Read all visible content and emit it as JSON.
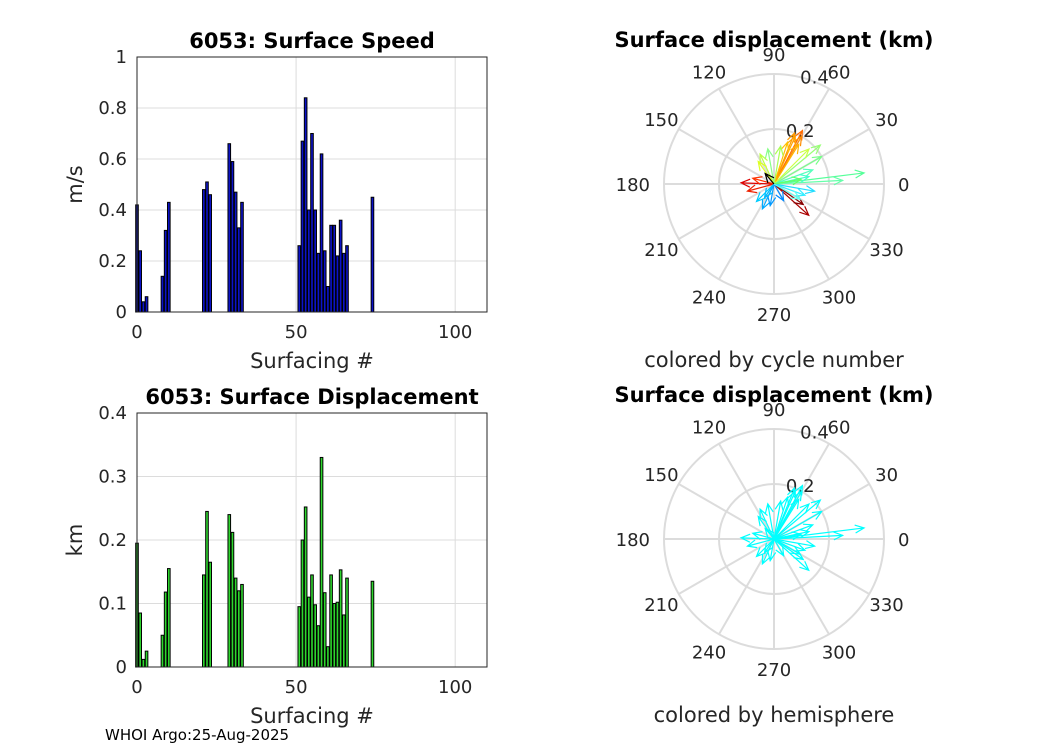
{
  "footer": "WHOI Argo:25-Aug-2025",
  "chart_data": [
    {
      "id": "speed",
      "type": "bar",
      "title": "6053: Surface Speed",
      "xlabel": "Surfacing #",
      "ylabel": "m/s",
      "xlim": [
        0,
        110
      ],
      "ylim": [
        0,
        1
      ],
      "xticks": [
        "0",
        "50",
        "100"
      ],
      "xtick_values": [
        0,
        50,
        100
      ],
      "yticks": [
        "0",
        "0.2",
        "0.4",
        "0.6",
        "0.8",
        "1"
      ],
      "ytick_values": [
        0,
        0.2,
        0.4,
        0.6,
        0.8,
        1
      ],
      "bar_color": "#0c13c8",
      "x": [
        0,
        1,
        2,
        3,
        8,
        9,
        10,
        21,
        22,
        23,
        29,
        30,
        31,
        32,
        33,
        51,
        52,
        53,
        54,
        55,
        56,
        57,
        58,
        59,
        60,
        61,
        62,
        63,
        64,
        65,
        66,
        74
      ],
      "values": [
        0.42,
        0.24,
        0.04,
        0.06,
        0.14,
        0.32,
        0.43,
        0.48,
        0.51,
        0.46,
        0.66,
        0.59,
        0.47,
        0.33,
        0.43,
        0.26,
        0.67,
        0.84,
        0.4,
        0.7,
        0.4,
        0.23,
        0.62,
        0.24,
        0.1,
        0.34,
        0.34,
        0.22,
        0.36,
        0.23,
        0.26,
        0.45
      ]
    },
    {
      "id": "disp",
      "type": "bar",
      "title": "6053: Surface Displacement",
      "xlabel": "Surfacing #",
      "ylabel": "km",
      "xlim": [
        0,
        110
      ],
      "ylim": [
        0,
        0.4
      ],
      "xticks": [
        "0",
        "50",
        "100"
      ],
      "xtick_values": [
        0,
        50,
        100
      ],
      "yticks": [
        "0",
        "0.1",
        "0.2",
        "0.3",
        "0.4"
      ],
      "ytick_values": [
        0,
        0.1,
        0.2,
        0.3,
        0.4
      ],
      "bar_color": "#2ed62e",
      "x": [
        0,
        1,
        2,
        3,
        8,
        9,
        10,
        21,
        22,
        23,
        29,
        30,
        31,
        32,
        33,
        51,
        52,
        53,
        54,
        55,
        56,
        57,
        58,
        59,
        60,
        61,
        62,
        63,
        64,
        65,
        66,
        74
      ],
      "values": [
        0.195,
        0.085,
        0.012,
        0.025,
        0.05,
        0.118,
        0.155,
        0.145,
        0.245,
        0.165,
        0.24,
        0.212,
        0.14,
        0.12,
        0.13,
        0.095,
        0.2,
        0.252,
        0.11,
        0.145,
        0.098,
        0.065,
        0.33,
        0.117,
        0.032,
        0.145,
        0.1,
        0.102,
        0.153,
        0.082,
        0.14,
        0.135
      ]
    },
    {
      "id": "polar1",
      "type": "polar-quiver",
      "title": "Surface displacement (km)",
      "caption": "colored by cycle number",
      "rlim": [
        0,
        0.4
      ],
      "rticks": [
        "0.2",
        "0.4"
      ],
      "rtick_values": [
        0.2,
        0.4
      ],
      "angle_ticks": [
        "0",
        "30",
        "60",
        "90",
        "120",
        "150",
        "180",
        "210",
        "240",
        "270",
        "300",
        "330"
      ],
      "vectors": [
        {
          "r": 0.22,
          "theta": 62,
          "color": "#ff6a00"
        },
        {
          "r": 0.2,
          "theta": 60,
          "color": "#ff8c00"
        },
        {
          "r": 0.19,
          "theta": 66,
          "color": "#ffa500"
        },
        {
          "r": 0.17,
          "theta": 58,
          "color": "#ffb300"
        },
        {
          "r": 0.2,
          "theta": 68,
          "color": "#ff9a00"
        },
        {
          "r": 0.16,
          "theta": 72,
          "color": "#ffc000"
        },
        {
          "r": 0.14,
          "theta": 80,
          "color": "#aaff55"
        },
        {
          "r": 0.13,
          "theta": 100,
          "color": "#88ff88"
        },
        {
          "r": 0.12,
          "theta": 115,
          "color": "#bbff44"
        },
        {
          "r": 0.1,
          "theta": 125,
          "color": "#ddff22"
        },
        {
          "r": 0.33,
          "theta": 7,
          "color": "#55ff99"
        },
        {
          "r": 0.25,
          "theta": 3,
          "color": "#66ffaa"
        },
        {
          "r": 0.2,
          "theta": 30,
          "color": "#77ff88"
        },
        {
          "r": 0.22,
          "theta": 40,
          "color": "#99ff77"
        },
        {
          "r": 0.18,
          "theta": 45,
          "color": "#ccff44"
        },
        {
          "r": 0.15,
          "theta": 20,
          "color": "#55ffbb"
        },
        {
          "r": 0.13,
          "theta": 12,
          "color": "#44ffcc"
        },
        {
          "r": 0.12,
          "theta": 340,
          "color": "#33eeff"
        },
        {
          "r": 0.15,
          "theta": 350,
          "color": "#22ddff"
        },
        {
          "r": 0.1,
          "theta": 10,
          "color": "#66ff66"
        },
        {
          "r": 0.12,
          "theta": 178,
          "color": "#dd0000"
        },
        {
          "r": 0.1,
          "theta": 195,
          "color": "#ee2200"
        },
        {
          "r": 0.08,
          "theta": 165,
          "color": "#ff3300"
        },
        {
          "r": 0.17,
          "theta": 318,
          "color": "#aa0000"
        },
        {
          "r": 0.13,
          "theta": 325,
          "color": "#880000"
        },
        {
          "r": 0.1,
          "theta": 245,
          "color": "#00aaff"
        },
        {
          "r": 0.08,
          "theta": 260,
          "color": "#0099ff"
        },
        {
          "r": 0.09,
          "theta": 225,
          "color": "#00ccff"
        },
        {
          "r": 0.06,
          "theta": 235,
          "color": "#00bbff"
        },
        {
          "r": 0.07,
          "theta": 300,
          "color": "#0088ff"
        },
        {
          "r": 0.05,
          "theta": 130,
          "color": "#000000"
        },
        {
          "r": 0.11,
          "theta": 330,
          "color": "#66ffee"
        }
      ]
    },
    {
      "id": "polar2",
      "type": "polar-quiver",
      "title": "Surface displacement (km)",
      "caption": "colored by hemisphere",
      "rlim": [
        0,
        0.4
      ],
      "rticks": [
        "0.2",
        "0.4"
      ],
      "rtick_values": [
        0.2,
        0.4
      ],
      "angle_ticks": [
        "0",
        "30",
        "60",
        "90",
        "120",
        "150",
        "180",
        "210",
        "240",
        "270",
        "300",
        "330"
      ],
      "vectors": [
        {
          "r": 0.22,
          "theta": 62,
          "color": "#00ffff"
        },
        {
          "r": 0.2,
          "theta": 60,
          "color": "#00ffff"
        },
        {
          "r": 0.19,
          "theta": 66,
          "color": "#00ffff"
        },
        {
          "r": 0.17,
          "theta": 58,
          "color": "#00ffff"
        },
        {
          "r": 0.2,
          "theta": 68,
          "color": "#00ffff"
        },
        {
          "r": 0.16,
          "theta": 72,
          "color": "#00ffff"
        },
        {
          "r": 0.14,
          "theta": 80,
          "color": "#00ffff"
        },
        {
          "r": 0.13,
          "theta": 100,
          "color": "#00ffff"
        },
        {
          "r": 0.12,
          "theta": 115,
          "color": "#00ffff"
        },
        {
          "r": 0.1,
          "theta": 125,
          "color": "#00ffff"
        },
        {
          "r": 0.33,
          "theta": 7,
          "color": "#00ffff"
        },
        {
          "r": 0.25,
          "theta": 3,
          "color": "#00ffff"
        },
        {
          "r": 0.2,
          "theta": 30,
          "color": "#00ffff"
        },
        {
          "r": 0.22,
          "theta": 40,
          "color": "#00ffff"
        },
        {
          "r": 0.18,
          "theta": 45,
          "color": "#00ffff"
        },
        {
          "r": 0.15,
          "theta": 20,
          "color": "#00ffff"
        },
        {
          "r": 0.13,
          "theta": 12,
          "color": "#00ffff"
        },
        {
          "r": 0.12,
          "theta": 340,
          "color": "#00ffff"
        },
        {
          "r": 0.15,
          "theta": 350,
          "color": "#00ffff"
        },
        {
          "r": 0.1,
          "theta": 10,
          "color": "#00ffff"
        },
        {
          "r": 0.12,
          "theta": 178,
          "color": "#00ffff"
        },
        {
          "r": 0.1,
          "theta": 195,
          "color": "#00ffff"
        },
        {
          "r": 0.08,
          "theta": 165,
          "color": "#00ffff"
        },
        {
          "r": 0.17,
          "theta": 318,
          "color": "#00ffff"
        },
        {
          "r": 0.13,
          "theta": 325,
          "color": "#00ffff"
        },
        {
          "r": 0.1,
          "theta": 245,
          "color": "#00ffff"
        },
        {
          "r": 0.08,
          "theta": 260,
          "color": "#00ffff"
        },
        {
          "r": 0.09,
          "theta": 225,
          "color": "#00ffff"
        },
        {
          "r": 0.06,
          "theta": 235,
          "color": "#00ffff"
        },
        {
          "r": 0.07,
          "theta": 300,
          "color": "#00ffff"
        },
        {
          "r": 0.05,
          "theta": 130,
          "color": "#00ffff"
        },
        {
          "r": 0.11,
          "theta": 330,
          "color": "#00ffff"
        }
      ]
    }
  ]
}
